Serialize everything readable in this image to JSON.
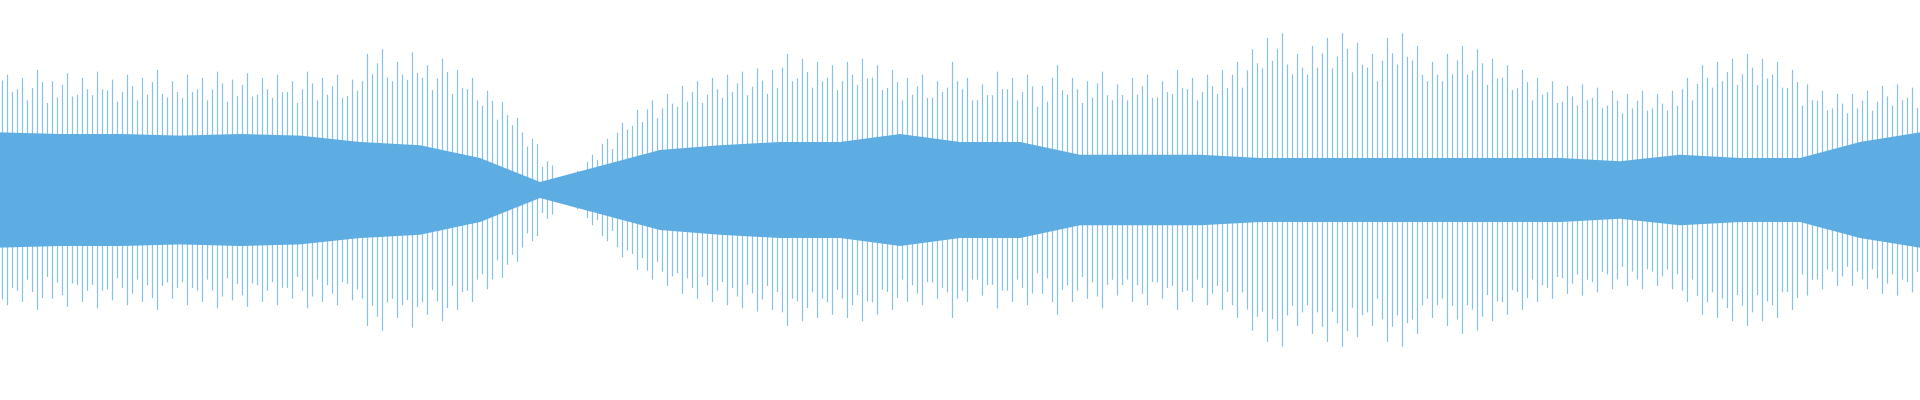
{
  "chart_data": {
    "type": "waveform",
    "color": "#5dade2",
    "peak_color": "#86c1ea",
    "values": [
      0.72,
      0.7,
      0.75,
      0.68,
      0.73,
      0.7,
      0.74,
      0.69,
      0.72,
      0.7,
      0.75,
      0.68,
      0.72,
      0.7,
      0.74,
      0.69,
      0.73,
      0.7,
      0.72,
      0.68,
      0.74,
      0.7,
      0.72,
      0.69,
      0.85,
      0.88,
      0.8,
      0.86,
      0.78,
      0.82,
      0.75,
      0.7,
      0.62,
      0.55,
      0.45,
      0.32,
      0.18,
      0.06,
      0.12,
      0.22,
      0.32,
      0.42,
      0.5,
      0.56,
      0.6,
      0.65,
      0.68,
      0.7,
      0.72,
      0.74,
      0.76,
      0.75,
      0.85,
      0.82,
      0.8,
      0.78,
      0.8,
      0.82,
      0.78,
      0.75,
      0.7,
      0.72,
      0.68,
      0.8,
      0.7,
      0.66,
      0.74,
      0.7,
      0.72,
      0.65,
      0.78,
      0.7,
      0.68,
      0.74,
      0.66,
      0.7,
      0.72,
      0.68,
      0.75,
      0.7,
      0.72,
      0.75,
      0.8,
      0.88,
      0.95,
      0.98,
      0.85,
      0.9,
      0.95,
      0.98,
      0.92,
      0.85,
      0.95,
      0.98,
      0.9,
      0.8,
      0.85,
      0.9,
      0.88,
      0.82,
      0.78,
      0.75,
      0.7,
      0.68,
      0.65,
      0.66,
      0.64,
      0.62,
      0.6,
      0.62,
      0.6,
      0.62,
      0.7,
      0.78,
      0.8,
      0.82,
      0.85,
      0.82,
      0.8,
      0.75,
      0.66,
      0.62,
      0.6,
      0.6,
      0.62,
      0.65,
      0.66,
      0.64
    ],
    "core": [
      0.36,
      0.35,
      0.35,
      0.34,
      0.35,
      0.34,
      0.3,
      0.28,
      0.2,
      0.05,
      0.15,
      0.25,
      0.28,
      0.3,
      0.3,
      0.35,
      0.3,
      0.3,
      0.22,
      0.22,
      0.22,
      0.2,
      0.2,
      0.2,
      0.2,
      0.2,
      0.2,
      0.18,
      0.22,
      0.2,
      0.2,
      0.3,
      0.36
    ]
  }
}
